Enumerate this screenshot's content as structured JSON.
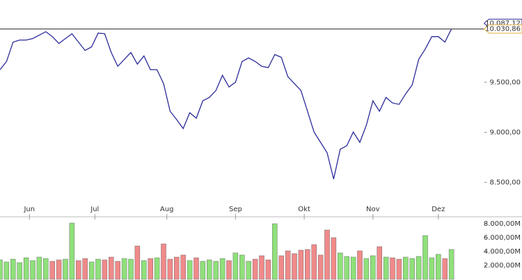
{
  "chart_data": [
    {
      "type": "line",
      "color": "#2b2b9a",
      "x": [
        0,
        2,
        4,
        6,
        8,
        10,
        12,
        14,
        16,
        18,
        20,
        22,
        24,
        26,
        28,
        30,
        32,
        34,
        36,
        38,
        40,
        42,
        44,
        46,
        48,
        50,
        52,
        54,
        56,
        58,
        60,
        62,
        64,
        66,
        68,
        70,
        72,
        74,
        76,
        78,
        80,
        82,
        84,
        86,
        88,
        90,
        92,
        94,
        96,
        98,
        100,
        102,
        104,
        106,
        108,
        110,
        112,
        114,
        116,
        118,
        120,
        122,
        124,
        126,
        128,
        130,
        132,
        134,
        136,
        138
      ],
      "values": [
        9624,
        9707,
        9900,
        9921,
        9921,
        9935,
        9969,
        10004,
        9955,
        9886,
        9935,
        9983,
        9900,
        9817,
        9852,
        9990,
        9983,
        9797,
        9659,
        9728,
        9797,
        9680,
        9762,
        9624,
        9624,
        9486,
        9210,
        9127,
        9038,
        9196,
        9141,
        9314,
        9348,
        9417,
        9569,
        9452,
        9500,
        9707,
        9742,
        9707,
        9659,
        9645,
        9776,
        9748,
        9555,
        9486,
        9417,
        9210,
        9003,
        8900,
        8796,
        8534,
        8831,
        8866,
        9003,
        8900,
        9072,
        9314,
        9210,
        9348,
        9293,
        9279,
        9383,
        9472,
        9728,
        9831,
        9955,
        9955,
        9900,
        10030.86
      ],
      "xlim": [
        0,
        148
      ],
      "ylim": [
        8310,
        10320
      ],
      "xticks": [
        {
          "value": 9,
          "label": "Jun"
        },
        {
          "value": 29,
          "label": "Jul"
        },
        {
          "value": 51,
          "label": "Aug"
        },
        {
          "value": 72,
          "label": "Sep"
        },
        {
          "value": 93,
          "label": "Okt"
        },
        {
          "value": 114,
          "label": "Nov"
        },
        {
          "value": 134,
          "label": "Dez"
        }
      ],
      "yticks": [
        {
          "value": 8500,
          "label": "8.500,00"
        },
        {
          "value": 9000,
          "label": "9.000,00"
        },
        {
          "value": 9500,
          "label": "9.500,00"
        }
      ],
      "reference_lines": [
        {
          "value": 10087.12,
          "label": "10.087,12"
        },
        {
          "value": 10030.86,
          "label": "10.030,86"
        }
      ]
    },
    {
      "type": "bar",
      "up_color": "#8fe07a",
      "down_color": "#f08a8a",
      "values": [
        2800,
        2500,
        2900,
        2400,
        3100,
        2700,
        3200,
        3000,
        2600,
        2800,
        2900,
        8100,
        2700,
        3000,
        2500,
        2900,
        2800,
        3200,
        2600,
        3000,
        2900,
        4800,
        2700,
        3000,
        3100,
        5100,
        2900,
        3200,
        3500,
        2700,
        3100,
        2600,
        2800,
        2600,
        3000,
        2700,
        3800,
        3500,
        2600,
        2900,
        3400,
        2800,
        8000,
        3400,
        4100,
        3700,
        4200,
        4300,
        5000,
        3500,
        7100,
        6000,
        3800,
        3300,
        3200,
        4100,
        3000,
        3400,
        4700,
        3200,
        3100,
        2900,
        3200,
        3000,
        3300,
        6300,
        3100,
        3600,
        3000,
        4300
      ],
      "ylim": [
        0,
        9000
      ],
      "yticks": [
        {
          "value": 2000,
          "label": "2.000,00M"
        },
        {
          "value": 4000,
          "label": "4.000,00M"
        },
        {
          "value": 6000,
          "label": "6.000,00M"
        },
        {
          "value": 8000,
          "label": "8.000,00M"
        }
      ]
    }
  ]
}
